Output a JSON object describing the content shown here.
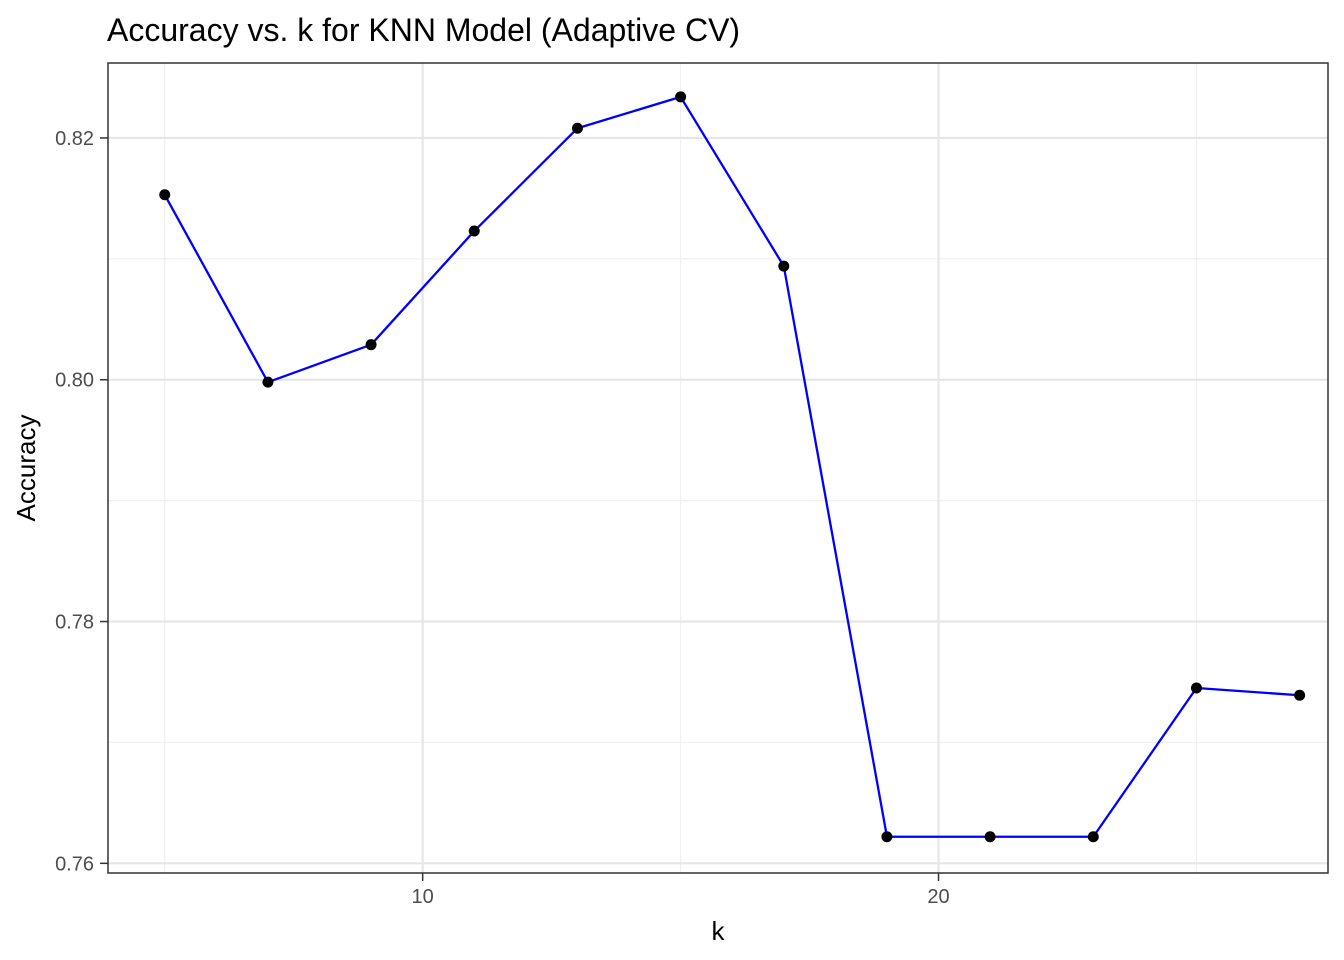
{
  "chart_data": {
    "type": "line",
    "title": "Accuracy vs. k for KNN Model (Adaptive CV)",
    "xlabel": "k",
    "ylabel": "Accuracy",
    "x": [
      5,
      7,
      9,
      11,
      13,
      15,
      17,
      19,
      21,
      23,
      25,
      27
    ],
    "series": [
      {
        "values": [
          0.8153,
          0.7998,
          0.8029,
          0.8123,
          0.8208,
          0.8234,
          0.8094,
          0.7622,
          0.7622,
          0.7622,
          0.7745,
          0.7739
        ]
      }
    ],
    "xlim": [
      3.9,
      27.55
    ],
    "ylim": [
      0.7592,
      0.8262
    ],
    "x_ticks": [
      10,
      20
    ],
    "x_minor_ticks": [
      5,
      15,
      25
    ],
    "y_ticks": [
      0.76,
      0.78,
      0.8,
      0.82
    ],
    "y_minor_ticks": [
      0.77,
      0.79,
      0.81
    ],
    "x_tick_labels": [
      "10",
      "20"
    ],
    "y_tick_labels": [
      "0.76",
      "0.78",
      "0.80",
      "0.82"
    ],
    "grid": true,
    "legend": "none",
    "colors": {
      "line": "#0000ff",
      "point": "#000000",
      "grid_major": "#e6e6e6",
      "grid_minor": "#f0f0f0",
      "panel_border": "#333333",
      "tick_text": "#4d4d4d"
    }
  }
}
